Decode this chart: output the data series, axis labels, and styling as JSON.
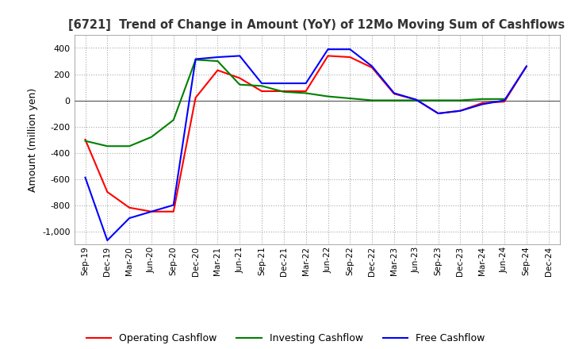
{
  "title": "[6721]  Trend of Change in Amount (YoY) of 12Mo Moving Sum of Cashflows",
  "ylabel": "Amount (million yen)",
  "x_labels": [
    "Sep-19",
    "Dec-19",
    "Mar-20",
    "Jun-20",
    "Sep-20",
    "Dec-20",
    "Mar-21",
    "Jun-21",
    "Sep-21",
    "Dec-21",
    "Mar-22",
    "Jun-22",
    "Sep-22",
    "Dec-22",
    "Mar-23",
    "Jun-23",
    "Sep-23",
    "Dec-23",
    "Mar-24",
    "Jun-24",
    "Sep-24",
    "Dec-24"
  ],
  "operating": [
    -300,
    -700,
    -820,
    -850,
    -850,
    20,
    230,
    170,
    70,
    70,
    70,
    340,
    330,
    250,
    50,
    5,
    -100,
    -80,
    -20,
    -10,
    260,
    null
  ],
  "investing": [
    -310,
    -350,
    -350,
    -280,
    -150,
    310,
    300,
    120,
    110,
    65,
    55,
    30,
    15,
    0,
    0,
    0,
    0,
    0,
    10,
    10,
    null,
    null
  ],
  "free": [
    -590,
    -1070,
    -900,
    -850,
    -800,
    315,
    330,
    340,
    130,
    130,
    130,
    390,
    390,
    260,
    55,
    5,
    -100,
    -80,
    -30,
    0,
    260,
    null
  ],
  "ylim": [
    -1100,
    500
  ],
  "yticks": [
    -1000,
    -800,
    -600,
    -400,
    -200,
    0,
    200,
    400
  ],
  "operating_color": "#ff0000",
  "investing_color": "#008000",
  "free_color": "#0000ff",
  "legend_labels": [
    "Operating Cashflow",
    "Investing Cashflow",
    "Free Cashflow"
  ],
  "grid_color": "#aaaaaa",
  "bg_color": "#ffffff"
}
